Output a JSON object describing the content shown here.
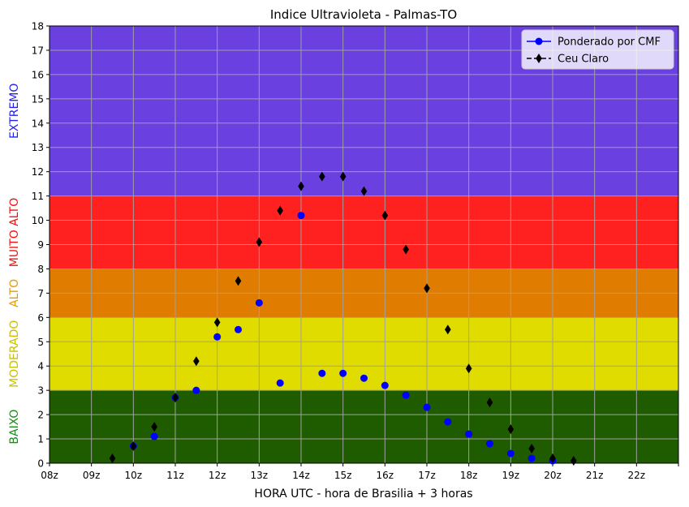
{
  "chart_data": {
    "type": "scatter",
    "title": "Indice Ultravioleta - Palmas-TO",
    "xlabel": "HORA UTC - hora de Brasilia + 3 horas",
    "ylabel": "",
    "x_range": [
      8,
      23
    ],
    "ylim": [
      0,
      18
    ],
    "x_ticks": [
      8,
      9,
      10,
      11,
      12,
      13,
      14,
      15,
      16,
      17,
      18,
      19,
      20,
      21,
      22,
      23
    ],
    "x_tick_labels": [
      "08z",
      "09z",
      "10z",
      "11z",
      "12z",
      "13z",
      "14z",
      "15z",
      "16z",
      "17z",
      "18z",
      "19z",
      "20z",
      "21z",
      "22z",
      ""
    ],
    "y_ticks": [
      0,
      1,
      2,
      3,
      4,
      5,
      6,
      7,
      8,
      9,
      10,
      11,
      12,
      13,
      14,
      15,
      16,
      17,
      18
    ],
    "grid": true,
    "legend_position": "top-right",
    "bands": [
      {
        "label": "BAIXO",
        "from": 0,
        "to": 3,
        "fill": "#1f5c00",
        "label_color": "#1a8a1a"
      },
      {
        "label": "MODERADO",
        "from": 3,
        "to": 6,
        "fill": "#e0dc00",
        "label_color": "#c8c000"
      },
      {
        "label": "ALTO",
        "from": 6,
        "to": 8,
        "fill": "#e07c00",
        "label_color": "#e89a00"
      },
      {
        "label": "MUITO ALTO",
        "from": 8,
        "to": 11,
        "fill": "#ff2020",
        "label_color": "#ee1111"
      },
      {
        "label": "EXTREMO",
        "from": 11,
        "to": 18,
        "fill": "#6a40e0",
        "label_color": "#2222ee"
      }
    ],
    "series": [
      {
        "name": "Ponderado por CMF",
        "marker": "circle",
        "color": "#0000ff",
        "x": [
          10.0,
          10.5,
          11.0,
          11.5,
          12.0,
          12.5,
          13.0,
          13.5,
          14.0,
          14.5,
          15.0,
          15.5,
          16.0,
          16.5,
          17.0,
          17.5,
          18.0,
          18.5,
          19.0,
          19.5,
          20.0
        ],
        "y": [
          0.7,
          1.1,
          2.7,
          3.0,
          5.2,
          5.5,
          6.6,
          3.3,
          10.2,
          3.7,
          3.7,
          3.5,
          3.2,
          2.8,
          2.3,
          1.7,
          1.2,
          0.8,
          0.4,
          0.2,
          0.1
        ]
      },
      {
        "name": "Ceu Claro",
        "marker": "diamond",
        "color": "#000000",
        "x": [
          9.5,
          10.0,
          10.5,
          11.0,
          11.5,
          12.0,
          12.5,
          13.0,
          13.5,
          14.0,
          14.5,
          15.0,
          15.5,
          16.0,
          16.5,
          17.0,
          17.5,
          18.0,
          18.5,
          19.0,
          19.5,
          20.0,
          20.5
        ],
        "y": [
          0.2,
          0.7,
          1.5,
          2.7,
          4.2,
          5.8,
          7.5,
          9.1,
          10.4,
          11.4,
          11.8,
          11.8,
          11.2,
          10.2,
          8.8,
          7.2,
          5.5,
          3.9,
          2.5,
          1.4,
          0.6,
          0.2,
          0.1
        ]
      }
    ]
  }
}
